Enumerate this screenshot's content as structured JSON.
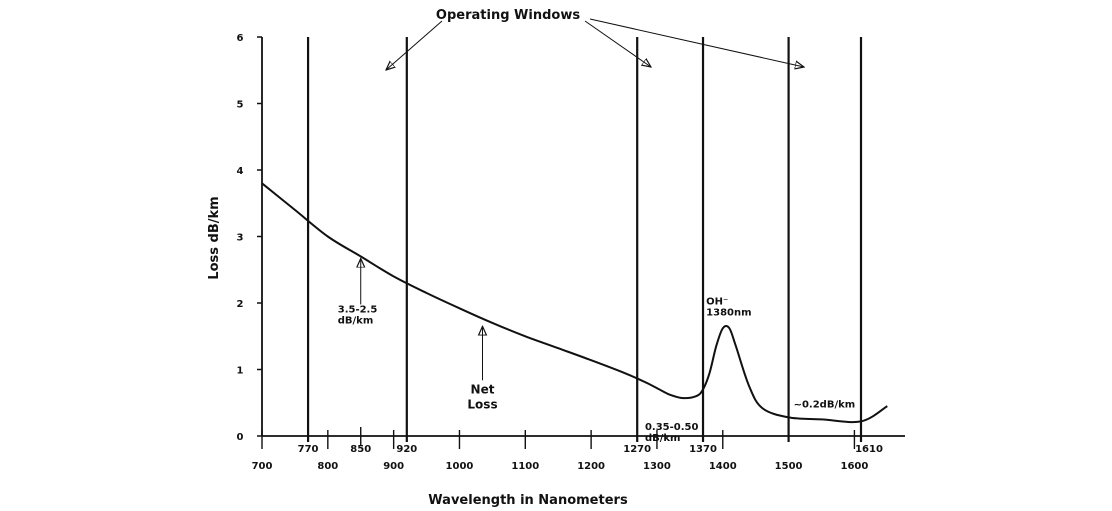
{
  "chart_data": {
    "type": "line",
    "title": "Operating Windows",
    "xlabel": "Wavelength in Nanometers",
    "ylabel": "Loss dB/km",
    "xlim": [
      700,
      1610
    ],
    "ylim": [
      0,
      6
    ],
    "grid": false,
    "y_ticks": [
      "0",
      "1",
      "2",
      "3",
      "4",
      "5",
      "6"
    ],
    "x_ticks": [
      {
        "value": 700,
        "label": "700",
        "row": "lower"
      },
      {
        "value": 770,
        "label": "770",
        "row": "upper"
      },
      {
        "value": 800,
        "label": "800",
        "row": "lower"
      },
      {
        "value": 850,
        "label": "850",
        "row": "upper"
      },
      {
        "value": 900,
        "label": "900",
        "row": "lower"
      },
      {
        "value": 920,
        "label": "920",
        "row": "upper"
      },
      {
        "value": 1000,
        "label": "1000",
        "row": "lower"
      },
      {
        "value": 1100,
        "label": "1100",
        "row": "lower"
      },
      {
        "value": 1200,
        "label": "1200",
        "row": "lower"
      },
      {
        "value": 1270,
        "label": "1270",
        "row": "upper"
      },
      {
        "value": 1300,
        "label": "1300",
        "row": "lower"
      },
      {
        "value": 1370,
        "label": "1370",
        "row": "upper"
      },
      {
        "value": 1400,
        "label": "1400",
        "row": "lower"
      },
      {
        "value": 1500,
        "label": "1500",
        "row": "lower"
      },
      {
        "value": 1600,
        "label": "1600",
        "row": "lower"
      },
      {
        "value": 1610,
        "label": "1610",
        "row": "upper"
      }
    ],
    "window_boundaries": [
      700,
      770,
      920,
      1270,
      1370,
      1500,
      1610
    ],
    "series": [
      {
        "name": "Net Loss",
        "x": [
          700,
          750,
          800,
          850,
          900,
          950,
          1000,
          1050,
          1100,
          1150,
          1200,
          1250,
          1280,
          1300,
          1320,
          1340,
          1360,
          1370,
          1380,
          1390,
          1400,
          1410,
          1420,
          1440,
          1460,
          1500,
          1550,
          1610,
          1650
        ],
        "y": [
          3.8,
          3.4,
          3.0,
          2.7,
          2.4,
          2.15,
          1.92,
          1.7,
          1.5,
          1.32,
          1.14,
          0.95,
          0.82,
          0.72,
          0.62,
          0.57,
          0.6,
          0.7,
          0.95,
          1.35,
          1.62,
          1.62,
          1.35,
          0.75,
          0.42,
          0.28,
          0.25,
          0.22,
          0.45
        ]
      }
    ],
    "annotations": [
      {
        "text": [
          "3.5-2.5",
          "dB/km"
        ],
        "x": 850,
        "y": 2.7
      },
      {
        "text": [
          "Net",
          "Loss"
        ],
        "x": 1035,
        "y": 1.65
      },
      {
        "text": [
          "0.35-0.50",
          "dB/km"
        ],
        "x": 1300,
        "y": 0.5
      },
      {
        "text": [
          "OH⁻",
          "1380nm"
        ],
        "x": 1390,
        "y": 1.62
      },
      {
        "text": [
          "~0.2dB/km"
        ],
        "x": 1500,
        "y": 0.28
      }
    ]
  }
}
